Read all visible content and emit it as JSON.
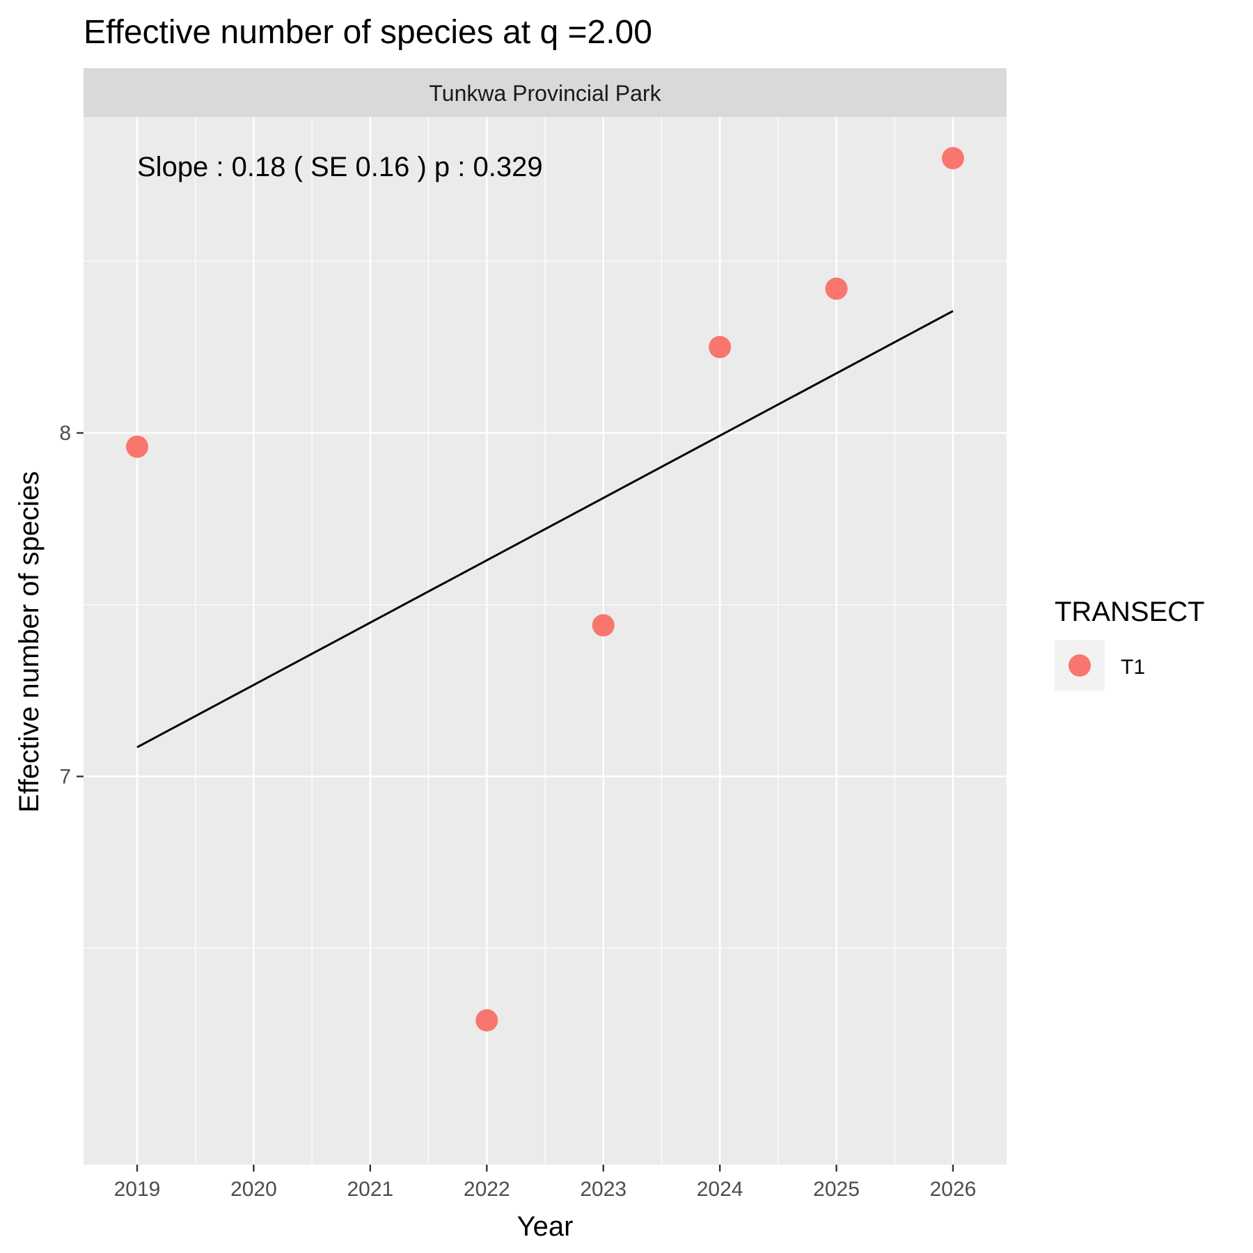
{
  "chart_data": {
    "type": "scatter",
    "title": "Effective number of species at q =2.00",
    "facet": "Tunkwa Provincial Park",
    "annotation": "Slope :  0.18  ( SE  0.16 )  p : 0.329",
    "xlabel": "Year",
    "ylabel": "Effective number of species",
    "x_ticks": [
      2019,
      2020,
      2021,
      2022,
      2023,
      2024,
      2025,
      2026
    ],
    "y_ticks": [
      7,
      8
    ],
    "xlim": [
      2018.54,
      2026.46
    ],
    "ylim": [
      5.87,
      8.92
    ],
    "grid": true,
    "series": [
      {
        "name": "T1",
        "color": "#F8766D",
        "x": [
          2019,
          2022,
          2023,
          2024,
          2025,
          2026
        ],
        "y": [
          7.96,
          6.29,
          7.44,
          8.25,
          8.42,
          8.8
        ]
      }
    ],
    "trend_line": {
      "x": [
        2019,
        2026
      ],
      "y": [
        7.085,
        8.355
      ],
      "color": "#000000"
    },
    "legend": {
      "title": "TRANSECT",
      "position": "right"
    }
  }
}
